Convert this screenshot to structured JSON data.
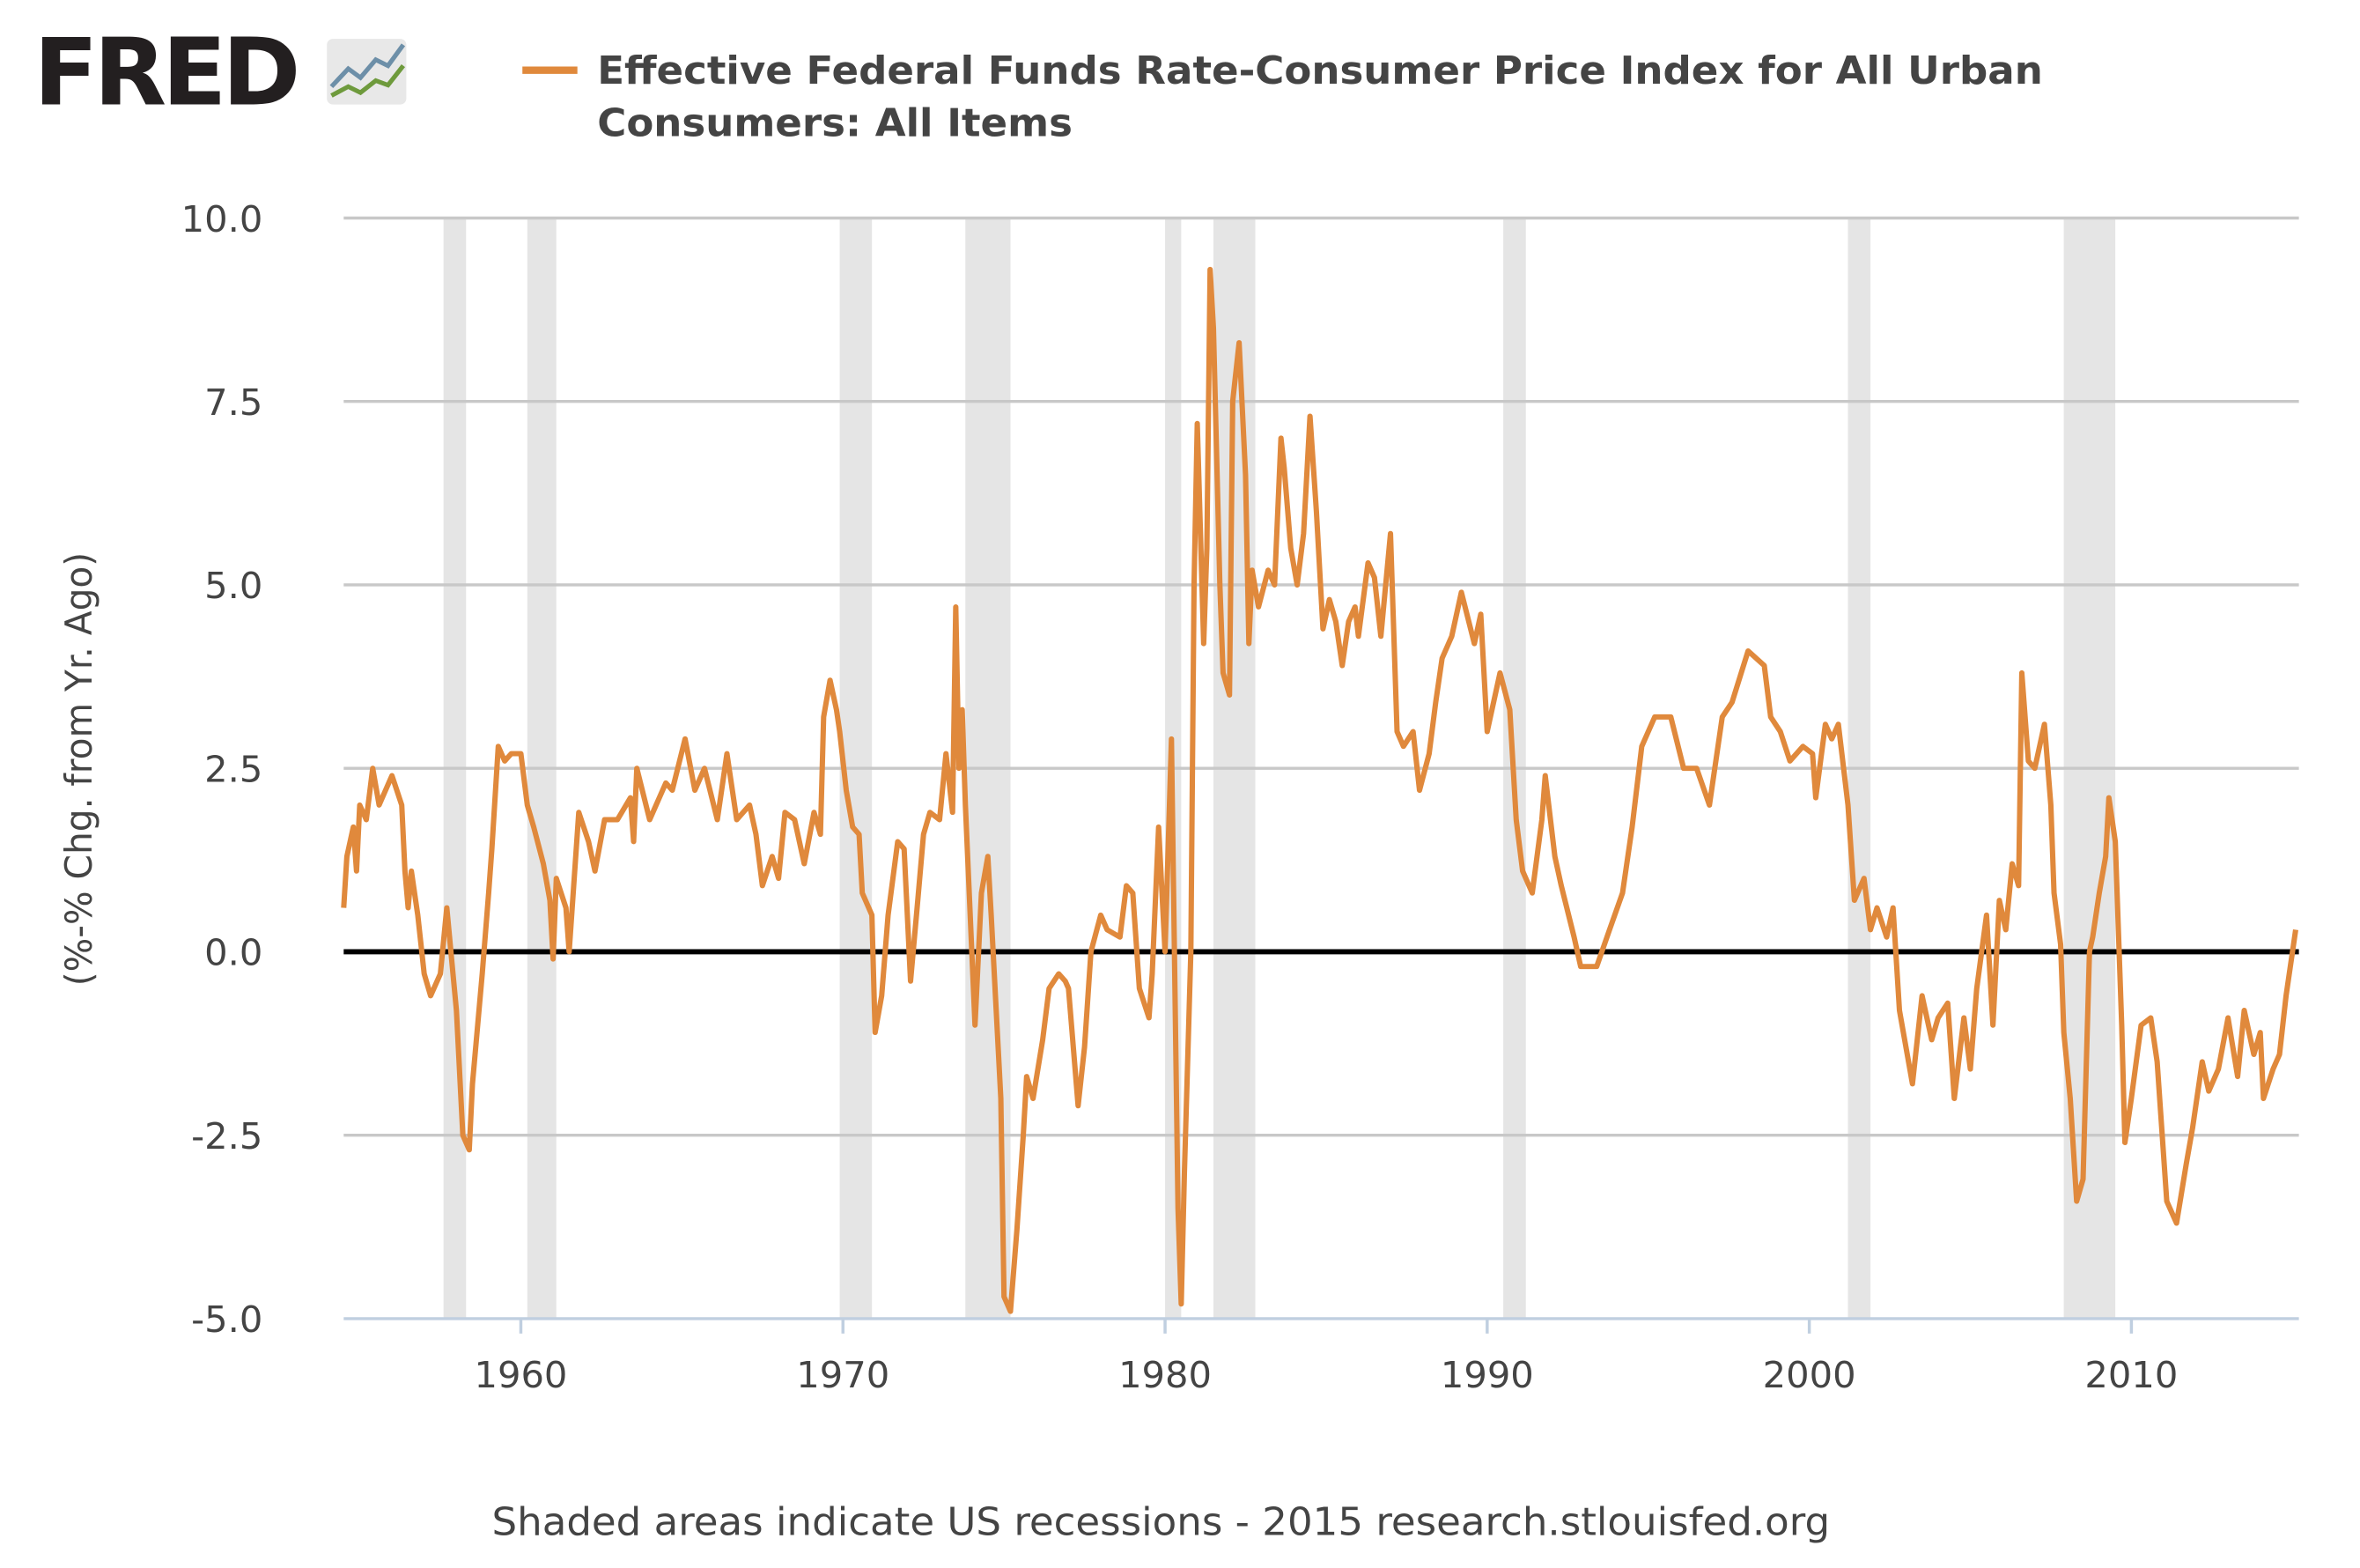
{
  "logo": {
    "text": "FRED"
  },
  "chart_data": {
    "type": "line",
    "title": "",
    "legend": [
      "Effective Federal Funds Rate-Consumer Price Index for All Urban",
      "Consumers: All Items"
    ],
    "legend_placement": "top",
    "ylabel": "(%-% Chg. from Yr. Ago)",
    "xlabel": "",
    "xlim": [
      1954.5,
      2015.2
    ],
    "ylim": [
      -5,
      10
    ],
    "yticks": [
      10.0,
      7.5,
      5.0,
      2.5,
      0.0,
      -2.5,
      -5.0
    ],
    "ytick_labels": [
      "10.0",
      "7.5",
      "5.0",
      "2.5",
      "0.0",
      "-2.5",
      "-5.0"
    ],
    "xticks": [
      1960,
      1970,
      1980,
      1990,
      2000,
      2010
    ],
    "xtick_labels": [
      "1960",
      "1970",
      "1980",
      "1990",
      "2000",
      "2010"
    ],
    "grid": true,
    "colors": {
      "series": "#e0893c",
      "grid": "#c8c8c8",
      "recession": "#e5e5e5",
      "zero_line": "#000000",
      "axis": "#c0cfe0"
    },
    "recessions": [
      [
        1957.6,
        1958.3
      ],
      [
        1960.2,
        1961.1
      ],
      [
        1969.9,
        1970.9
      ],
      [
        1973.8,
        1975.2
      ],
      [
        1980.0,
        1980.5
      ],
      [
        1981.5,
        1982.8
      ],
      [
        1990.5,
        1991.2
      ],
      [
        2001.2,
        2001.9
      ],
      [
        2007.9,
        2009.5
      ]
    ],
    "series": [
      {
        "points": [
          [
            1954.5,
            0.6
          ],
          [
            1954.6,
            1.3
          ],
          [
            1954.8,
            1.7
          ],
          [
            1954.9,
            1.1
          ],
          [
            1955.0,
            2.0
          ],
          [
            1955.2,
            1.8
          ],
          [
            1955.4,
            2.5
          ],
          [
            1955.6,
            2.0
          ],
          [
            1955.8,
            2.2
          ],
          [
            1956.0,
            2.4
          ],
          [
            1956.3,
            2.0
          ],
          [
            1956.4,
            1.1
          ],
          [
            1956.5,
            0.6
          ],
          [
            1956.6,
            1.1
          ],
          [
            1956.8,
            0.5
          ],
          [
            1957.0,
            -0.3
          ],
          [
            1957.2,
            -0.6
          ],
          [
            1957.5,
            -0.3
          ],
          [
            1957.7,
            0.6
          ],
          [
            1958.0,
            -0.8
          ],
          [
            1958.2,
            -2.5
          ],
          [
            1958.4,
            -2.7
          ],
          [
            1958.5,
            -1.8
          ],
          [
            1958.8,
            -0.3
          ],
          [
            1959.0,
            0.8
          ],
          [
            1959.1,
            1.4
          ],
          [
            1959.3,
            2.8
          ],
          [
            1959.5,
            2.6
          ],
          [
            1959.7,
            2.7
          ],
          [
            1960.0,
            2.7
          ],
          [
            1960.2,
            2.0
          ],
          [
            1960.4,
            1.7
          ],
          [
            1960.7,
            1.2
          ],
          [
            1960.9,
            0.7
          ],
          [
            1961.0,
            -0.1
          ],
          [
            1961.1,
            1.0
          ],
          [
            1961.4,
            0.6
          ],
          [
            1961.5,
            0.0
          ],
          [
            1961.8,
            1.9
          ],
          [
            1962.1,
            1.5
          ],
          [
            1962.3,
            1.1
          ],
          [
            1962.6,
            1.8
          ],
          [
            1963.0,
            1.8
          ],
          [
            1963.4,
            2.1
          ],
          [
            1963.5,
            1.5
          ],
          [
            1963.6,
            2.5
          ],
          [
            1964.0,
            1.8
          ],
          [
            1964.5,
            2.3
          ],
          [
            1964.7,
            2.2
          ],
          [
            1965.1,
            2.9
          ],
          [
            1965.4,
            2.2
          ],
          [
            1965.7,
            2.5
          ],
          [
            1966.1,
            1.8
          ],
          [
            1966.4,
            2.7
          ],
          [
            1966.7,
            1.8
          ],
          [
            1967.1,
            2.0
          ],
          [
            1967.3,
            1.6
          ],
          [
            1967.5,
            0.9
          ],
          [
            1967.8,
            1.3
          ],
          [
            1968.0,
            1.0
          ],
          [
            1968.2,
            1.9
          ],
          [
            1968.5,
            1.8
          ],
          [
            1968.8,
            1.2
          ],
          [
            1969.1,
            1.9
          ],
          [
            1969.3,
            1.6
          ],
          [
            1969.4,
            3.2
          ],
          [
            1969.6,
            3.7
          ],
          [
            1969.8,
            3.3
          ],
          [
            1969.9,
            3.0
          ],
          [
            1970.1,
            2.2
          ],
          [
            1970.3,
            1.7
          ],
          [
            1970.5,
            1.6
          ],
          [
            1970.6,
            0.8
          ],
          [
            1970.9,
            0.5
          ],
          [
            1971.0,
            -1.1
          ],
          [
            1971.2,
            -0.6
          ],
          [
            1971.4,
            0.5
          ],
          [
            1971.7,
            1.5
          ],
          [
            1971.9,
            1.4
          ],
          [
            1972.1,
            -0.4
          ],
          [
            1972.3,
            0.6
          ],
          [
            1972.5,
            1.6
          ],
          [
            1972.7,
            1.9
          ],
          [
            1973.0,
            1.8
          ],
          [
            1973.2,
            2.7
          ],
          [
            1973.4,
            1.9
          ],
          [
            1973.5,
            4.7
          ],
          [
            1973.6,
            2.5
          ],
          [
            1973.7,
            3.3
          ],
          [
            1973.8,
            2.0
          ],
          [
            1974.1,
            -1.0
          ],
          [
            1974.3,
            0.8
          ],
          [
            1974.5,
            1.3
          ],
          [
            1974.6,
            0.5
          ],
          [
            1974.9,
            -2.0
          ],
          [
            1975.0,
            -4.7
          ],
          [
            1975.2,
            -4.9
          ],
          [
            1975.4,
            -3.8
          ],
          [
            1975.6,
            -2.5
          ],
          [
            1975.7,
            -1.7
          ],
          [
            1975.9,
            -2.0
          ],
          [
            1976.2,
            -1.2
          ],
          [
            1976.4,
            -0.5
          ],
          [
            1976.7,
            -0.3
          ],
          [
            1976.9,
            -0.4
          ],
          [
            1977.0,
            -0.5
          ],
          [
            1977.3,
            -2.1
          ],
          [
            1977.5,
            -1.3
          ],
          [
            1977.7,
            0.0
          ],
          [
            1978.0,
            0.5
          ],
          [
            1978.2,
            0.3
          ],
          [
            1978.6,
            0.2
          ],
          [
            1978.8,
            0.9
          ],
          [
            1979.0,
            0.8
          ],
          [
            1979.2,
            -0.5
          ],
          [
            1979.5,
            -0.9
          ],
          [
            1979.6,
            -0.3
          ],
          [
            1979.8,
            1.7
          ],
          [
            1980.0,
            0.0
          ],
          [
            1980.2,
            2.9
          ],
          [
            1980.4,
            -3.5
          ],
          [
            1980.5,
            -4.8
          ],
          [
            1980.6,
            -3.0
          ],
          [
            1980.8,
            0.0
          ],
          [
            1980.9,
            5.0
          ],
          [
            1981.0,
            7.2
          ],
          [
            1981.2,
            4.2
          ],
          [
            1981.3,
            5.5
          ],
          [
            1981.4,
            9.3
          ],
          [
            1981.5,
            8.5
          ],
          [
            1981.7,
            5.0
          ],
          [
            1981.8,
            3.8
          ],
          [
            1982.0,
            3.5
          ],
          [
            1982.1,
            7.5
          ],
          [
            1982.3,
            8.3
          ],
          [
            1982.5,
            6.5
          ],
          [
            1982.6,
            4.2
          ],
          [
            1982.7,
            5.2
          ],
          [
            1982.9,
            4.7
          ],
          [
            1983.2,
            5.2
          ],
          [
            1983.4,
            5.0
          ],
          [
            1983.6,
            7.0
          ],
          [
            1983.7,
            6.6
          ],
          [
            1983.9,
            5.5
          ],
          [
            1984.1,
            5.0
          ],
          [
            1984.3,
            5.7
          ],
          [
            1984.5,
            7.3
          ],
          [
            1984.7,
            6.0
          ],
          [
            1984.9,
            4.4
          ],
          [
            1985.1,
            4.8
          ],
          [
            1985.3,
            4.5
          ],
          [
            1985.5,
            3.9
          ],
          [
            1985.7,
            4.5
          ],
          [
            1985.9,
            4.7
          ],
          [
            1986.0,
            4.3
          ],
          [
            1986.3,
            5.3
          ],
          [
            1986.5,
            5.1
          ],
          [
            1986.7,
            4.3
          ],
          [
            1987.0,
            5.7
          ],
          [
            1987.2,
            3.0
          ],
          [
            1987.4,
            2.8
          ],
          [
            1987.7,
            3.0
          ],
          [
            1987.9,
            2.2
          ],
          [
            1988.2,
            2.7
          ],
          [
            1988.4,
            3.4
          ],
          [
            1988.6,
            4.0
          ],
          [
            1988.9,
            4.3
          ],
          [
            1989.2,
            4.9
          ],
          [
            1989.6,
            4.2
          ],
          [
            1989.8,
            4.6
          ],
          [
            1990.0,
            3.0
          ],
          [
            1990.4,
            3.8
          ],
          [
            1990.7,
            3.3
          ],
          [
            1990.9,
            1.8
          ],
          [
            1991.1,
            1.1
          ],
          [
            1991.4,
            0.8
          ],
          [
            1991.7,
            1.8
          ],
          [
            1991.8,
            2.4
          ],
          [
            1992.1,
            1.3
          ],
          [
            1992.3,
            0.9
          ],
          [
            1992.7,
            0.2
          ],
          [
            1992.9,
            -0.2
          ],
          [
            1993.4,
            -0.2
          ],
          [
            1993.8,
            0.3
          ],
          [
            1994.2,
            0.8
          ],
          [
            1994.5,
            1.7
          ],
          [
            1994.8,
            2.8
          ],
          [
            1995.2,
            3.2
          ],
          [
            1995.7,
            3.2
          ],
          [
            1996.1,
            2.5
          ],
          [
            1996.5,
            2.5
          ],
          [
            1996.9,
            2.0
          ],
          [
            1997.3,
            3.2
          ],
          [
            1997.6,
            3.4
          ],
          [
            1998.1,
            4.1
          ],
          [
            1998.6,
            3.9
          ],
          [
            1998.8,
            3.2
          ],
          [
            1999.1,
            3.0
          ],
          [
            1999.4,
            2.6
          ],
          [
            1999.8,
            2.8
          ],
          [
            2000.1,
            2.7
          ],
          [
            2000.2,
            2.1
          ],
          [
            2000.5,
            3.1
          ],
          [
            2000.7,
            2.9
          ],
          [
            2000.9,
            3.1
          ],
          [
            2001.2,
            2.0
          ],
          [
            2001.4,
            0.7
          ],
          [
            2001.7,
            1.0
          ],
          [
            2001.9,
            0.3
          ],
          [
            2002.1,
            0.6
          ],
          [
            2002.4,
            0.2
          ],
          [
            2002.6,
            0.6
          ],
          [
            2002.8,
            -0.8
          ],
          [
            2003.2,
            -1.8
          ],
          [
            2003.5,
            -0.6
          ],
          [
            2003.8,
            -1.2
          ],
          [
            2004.0,
            -0.9
          ],
          [
            2004.3,
            -0.7
          ],
          [
            2004.5,
            -2.0
          ],
          [
            2004.8,
            -0.9
          ],
          [
            2005.0,
            -1.6
          ],
          [
            2005.2,
            -0.5
          ],
          [
            2005.5,
            0.5
          ],
          [
            2005.7,
            -1.0
          ],
          [
            2005.9,
            0.7
          ],
          [
            2006.1,
            0.3
          ],
          [
            2006.3,
            1.2
          ],
          [
            2006.5,
            0.9
          ],
          [
            2006.6,
            3.8
          ],
          [
            2006.8,
            2.6
          ],
          [
            2007.0,
            2.5
          ],
          [
            2007.3,
            3.1
          ],
          [
            2007.5,
            2.0
          ],
          [
            2007.6,
            0.8
          ],
          [
            2007.8,
            0.1
          ],
          [
            2007.9,
            -1.1
          ],
          [
            2008.1,
            -2.0
          ],
          [
            2008.3,
            -3.4
          ],
          [
            2008.5,
            -3.1
          ],
          [
            2008.7,
            0.0
          ],
          [
            2008.8,
            0.2
          ],
          [
            2009.0,
            0.8
          ],
          [
            2009.2,
            1.3
          ],
          [
            2009.3,
            2.1
          ],
          [
            2009.5,
            1.5
          ],
          [
            2009.7,
            -1.0
          ],
          [
            2009.8,
            -2.6
          ],
          [
            2010.0,
            -2.0
          ],
          [
            2010.3,
            -1.0
          ],
          [
            2010.6,
            -0.9
          ],
          [
            2010.8,
            -1.5
          ],
          [
            2011.1,
            -3.4
          ],
          [
            2011.4,
            -3.7
          ],
          [
            2011.7,
            -2.9
          ],
          [
            2011.9,
            -2.4
          ],
          [
            2012.2,
            -1.5
          ],
          [
            2012.4,
            -1.9
          ],
          [
            2012.7,
            -1.6
          ],
          [
            2013.0,
            -0.9
          ],
          [
            2013.3,
            -1.7
          ],
          [
            2013.5,
            -0.8
          ],
          [
            2013.8,
            -1.4
          ],
          [
            2014.0,
            -1.1
          ],
          [
            2014.1,
            -2.0
          ],
          [
            2014.4,
            -1.6
          ],
          [
            2014.6,
            -1.4
          ],
          [
            2014.8,
            -0.6
          ],
          [
            2015.1,
            0.3
          ]
        ]
      }
    ]
  },
  "footer": "Shaded areas indicate US recessions - 2015 research.stlouisfed.org"
}
